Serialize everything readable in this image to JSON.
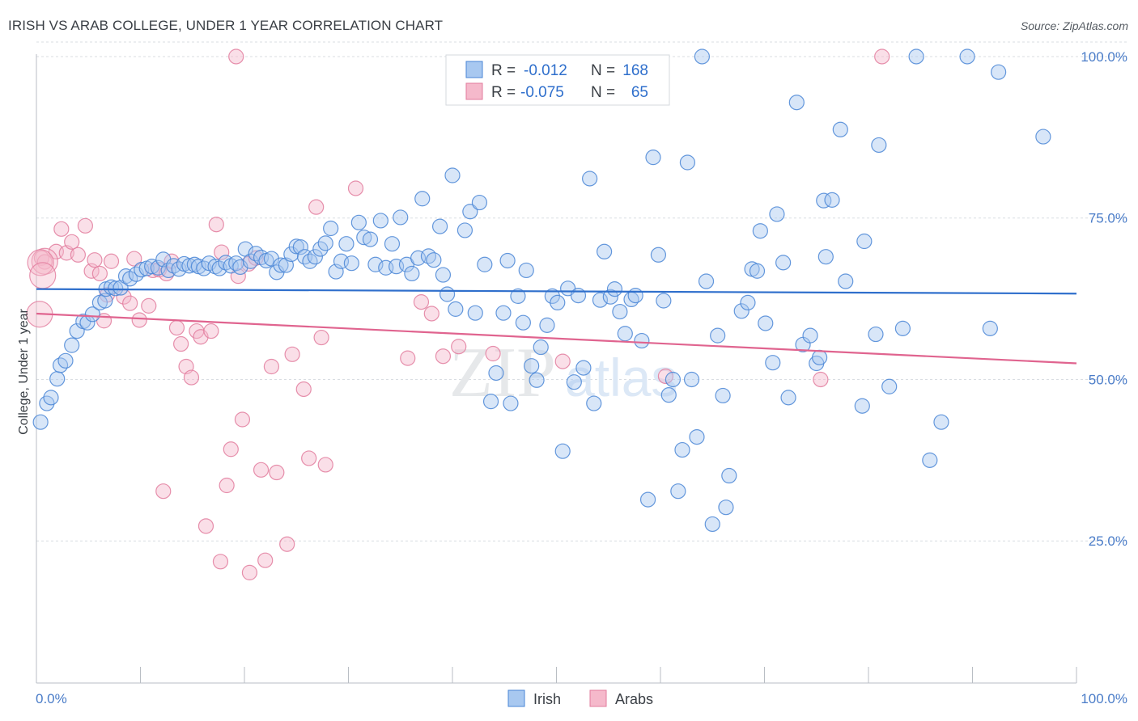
{
  "title": "IRISH VS ARAB COLLEGE, UNDER 1 YEAR CORRELATION CHART",
  "source": "Source: ZipAtlas.com",
  "watermark": {
    "part1": "ZIP",
    "part2": "atlas"
  },
  "colors": {
    "irish_fill": "#a8c8f0",
    "irish_stroke": "#4a86d6",
    "irish_line": "#2f6fcc",
    "arabs_fill": "#f5b9cb",
    "arabs_stroke": "#e27c9d",
    "arabs_line": "#e0648f",
    "tick_label": "#4a7cc8",
    "grid": "#d9dde2"
  },
  "stats_legend": {
    "r_label": "R =",
    "n_label": "N =",
    "rows": [
      {
        "series": "Irish",
        "r": "-0.012",
        "n": "168"
      },
      {
        "series": "Arabs",
        "r": "-0.075",
        "n": "65"
      }
    ]
  },
  "chart_data": {
    "type": "scatter",
    "title": "IRISH VS ARAB COLLEGE, UNDER 1 YEAR CORRELATION CHART",
    "xlabel": "",
    "ylabel": "College, Under 1 year",
    "xlim": [
      0,
      100
    ],
    "ylim": [
      3,
      101
    ],
    "x_tick_labels": [
      "0.0%",
      "100.0%"
    ],
    "y_ticks": [
      25,
      50,
      75,
      100
    ],
    "y_tick_labels": [
      "25.0%",
      "50.0%",
      "75.0%",
      "100.0%"
    ],
    "grid": true,
    "legend": "bottom-center",
    "series": [
      {
        "name": "Irish",
        "trend": {
          "x": [
            0,
            100
          ],
          "y": [
            64.0,
            63.3
          ]
        },
        "points": [
          [
            0.4,
            43.4
          ],
          [
            1.0,
            46.3
          ],
          [
            1.4,
            47.2
          ],
          [
            2.0,
            50.1
          ],
          [
            2.3,
            52.2
          ],
          [
            2.8,
            52.9
          ],
          [
            3.4,
            55.3
          ],
          [
            3.9,
            57.5
          ],
          [
            4.5,
            59.0
          ],
          [
            4.9,
            58.8
          ],
          [
            5.4,
            60.1
          ],
          [
            6.1,
            61.9
          ],
          [
            6.6,
            62.2
          ],
          [
            6.7,
            64.0
          ],
          [
            7.2,
            64.3
          ],
          [
            7.6,
            64.1
          ],
          [
            8.1,
            64.2
          ],
          [
            8.6,
            66.0
          ],
          [
            9.0,
            65.6
          ],
          [
            9.6,
            66.3
          ],
          [
            10.1,
            67.0
          ],
          [
            10.6,
            67.2
          ],
          [
            11.1,
            67.5
          ],
          [
            11.7,
            67.3
          ],
          [
            12.2,
            68.6
          ],
          [
            12.7,
            66.9
          ],
          [
            13.2,
            67.6
          ],
          [
            13.7,
            67.1
          ],
          [
            14.2,
            67.9
          ],
          [
            14.7,
            67.6
          ],
          [
            15.2,
            67.8
          ],
          [
            15.6,
            67.5
          ],
          [
            16.1,
            67.2
          ],
          [
            16.6,
            68.0
          ],
          [
            17.2,
            67.5
          ],
          [
            17.6,
            67.2
          ],
          [
            18.2,
            68.1
          ],
          [
            18.7,
            67.6
          ],
          [
            19.2,
            68.0
          ],
          [
            19.6,
            67.4
          ],
          [
            20.1,
            70.2
          ],
          [
            20.6,
            68.3
          ],
          [
            21.1,
            69.5
          ],
          [
            21.6,
            68.9
          ],
          [
            22.1,
            68.4
          ],
          [
            22.6,
            68.7
          ],
          [
            23.1,
            66.6
          ],
          [
            23.5,
            67.7
          ],
          [
            24.0,
            67.7
          ],
          [
            24.5,
            69.4
          ],
          [
            25.0,
            70.6
          ],
          [
            25.4,
            70.5
          ],
          [
            25.8,
            69.0
          ],
          [
            26.3,
            68.3
          ],
          [
            26.8,
            69.0
          ],
          [
            27.3,
            70.2
          ],
          [
            27.8,
            71.1
          ],
          [
            28.3,
            73.4
          ],
          [
            28.8,
            66.7
          ],
          [
            29.3,
            68.3
          ],
          [
            29.8,
            71.0
          ],
          [
            30.3,
            68.0
          ],
          [
            31.0,
            74.3
          ],
          [
            31.5,
            72.0
          ],
          [
            32.1,
            71.7
          ],
          [
            32.6,
            67.8
          ],
          [
            33.1,
            74.6
          ],
          [
            33.6,
            67.3
          ],
          [
            34.2,
            71.0
          ],
          [
            34.6,
            67.5
          ],
          [
            35.0,
            75.1
          ],
          [
            35.6,
            67.8
          ],
          [
            36.1,
            66.4
          ],
          [
            36.7,
            68.8
          ],
          [
            37.1,
            78.0
          ],
          [
            37.7,
            69.1
          ],
          [
            38.2,
            68.5
          ],
          [
            38.8,
            73.7
          ],
          [
            39.1,
            66.2
          ],
          [
            39.5,
            63.2
          ],
          [
            40.0,
            81.6
          ],
          [
            40.3,
            60.9
          ],
          [
            41.2,
            73.1
          ],
          [
            41.7,
            76.0
          ],
          [
            42.2,
            60.3
          ],
          [
            42.6,
            77.4
          ],
          [
            43.1,
            67.8
          ],
          [
            43.7,
            46.6
          ],
          [
            44.2,
            51.0
          ],
          [
            44.9,
            60.3
          ],
          [
            45.3,
            68.4
          ],
          [
            45.6,
            46.3
          ],
          [
            46.3,
            62.9
          ],
          [
            46.8,
            58.8
          ],
          [
            47.1,
            66.9
          ],
          [
            47.6,
            52.1
          ],
          [
            48.1,
            49.9
          ],
          [
            48.5,
            55.0
          ],
          [
            49.1,
            58.4
          ],
          [
            49.6,
            62.9
          ],
          [
            50.1,
            61.9
          ],
          [
            50.6,
            38.9
          ],
          [
            51.1,
            64.1
          ],
          [
            51.7,
            49.6
          ],
          [
            52.1,
            63.0
          ],
          [
            52.6,
            51.8
          ],
          [
            53.2,
            81.1
          ],
          [
            53.6,
            46.3
          ],
          [
            54.2,
            62.3
          ],
          [
            54.6,
            69.8
          ],
          [
            55.2,
            62.8
          ],
          [
            55.6,
            64.0
          ],
          [
            56.1,
            60.5
          ],
          [
            56.6,
            57.1
          ],
          [
            57.2,
            62.4
          ],
          [
            57.6,
            63.0
          ],
          [
            58.2,
            56.0
          ],
          [
            58.8,
            31.4
          ],
          [
            59.3,
            84.4
          ],
          [
            59.8,
            69.3
          ],
          [
            60.3,
            62.2
          ],
          [
            60.8,
            47.6
          ],
          [
            61.2,
            50.0
          ],
          [
            61.7,
            32.7
          ],
          [
            62.1,
            39.1
          ],
          [
            62.6,
            83.6
          ],
          [
            63.0,
            50.0
          ],
          [
            63.5,
            41.1
          ],
          [
            64.0,
            100.0
          ],
          [
            64.4,
            65.2
          ],
          [
            65.0,
            27.6
          ],
          [
            65.5,
            56.8
          ],
          [
            66.0,
            47.5
          ],
          [
            66.3,
            30.2
          ],
          [
            66.6,
            35.1
          ],
          [
            67.8,
            60.6
          ],
          [
            68.4,
            61.9
          ],
          [
            68.8,
            67.1
          ],
          [
            69.3,
            66.8
          ],
          [
            69.6,
            73.0
          ],
          [
            70.1,
            58.7
          ],
          [
            70.8,
            52.6
          ],
          [
            71.2,
            75.6
          ],
          [
            71.8,
            68.1
          ],
          [
            72.3,
            47.2
          ],
          [
            73.1,
            92.9
          ],
          [
            73.7,
            55.4
          ],
          [
            74.4,
            56.8
          ],
          [
            75.0,
            52.5
          ],
          [
            75.3,
            53.4
          ],
          [
            75.7,
            77.7
          ],
          [
            75.9,
            69.0
          ],
          [
            76.5,
            77.8
          ],
          [
            77.3,
            88.7
          ],
          [
            77.8,
            65.2
          ],
          [
            79.4,
            45.9
          ],
          [
            79.6,
            71.4
          ],
          [
            80.7,
            57.0
          ],
          [
            81.0,
            86.3
          ],
          [
            82.0,
            48.9
          ],
          [
            83.3,
            57.9
          ],
          [
            84.6,
            100.0
          ],
          [
            85.9,
            37.5
          ],
          [
            87.0,
            43.4
          ],
          [
            89.5,
            100.0
          ],
          [
            91.7,
            57.9
          ],
          [
            92.5,
            97.6
          ],
          [
            96.8,
            87.6
          ]
        ]
      },
      {
        "name": "Arabs",
        "trend": {
          "x": [
            0,
            100
          ],
          "y": [
            60.2,
            52.5
          ]
        },
        "points": [
          [
            0.5,
            68.8
          ],
          [
            0.8,
            68.2
          ],
          [
            1.9,
            69.8
          ],
          [
            2.4,
            73.3
          ],
          [
            2.9,
            69.6
          ],
          [
            3.4,
            71.3
          ],
          [
            4.0,
            69.3
          ],
          [
            4.7,
            73.8
          ],
          [
            5.3,
            66.8
          ],
          [
            5.6,
            68.5
          ],
          [
            6.1,
            66.4
          ],
          [
            6.5,
            59.1
          ],
          [
            6.8,
            63.1
          ],
          [
            7.2,
            68.3
          ],
          [
            8.4,
            62.8
          ],
          [
            9.0,
            61.8
          ],
          [
            9.4,
            68.7
          ],
          [
            9.9,
            59.2
          ],
          [
            10.8,
            61.4
          ],
          [
            11.2,
            66.9
          ],
          [
            11.8,
            67.0
          ],
          [
            12.2,
            32.7
          ],
          [
            12.5,
            66.4
          ],
          [
            13.0,
            68.3
          ],
          [
            13.5,
            58.0
          ],
          [
            13.9,
            55.5
          ],
          [
            14.4,
            52.0
          ],
          [
            14.9,
            50.3
          ],
          [
            15.4,
            57.5
          ],
          [
            15.8,
            56.6
          ],
          [
            16.3,
            27.3
          ],
          [
            16.8,
            57.5
          ],
          [
            17.3,
            74.0
          ],
          [
            17.8,
            69.7
          ],
          [
            17.7,
            21.8
          ],
          [
            18.3,
            33.6
          ],
          [
            18.7,
            39.2
          ],
          [
            19.2,
            100.0
          ],
          [
            19.4,
            66.0
          ],
          [
            19.8,
            43.8
          ],
          [
            20.4,
            67.9
          ],
          [
            20.5,
            20.1
          ],
          [
            21.1,
            68.8
          ],
          [
            21.6,
            36.0
          ],
          [
            22.0,
            22.0
          ],
          [
            22.6,
            52.0
          ],
          [
            23.1,
            35.6
          ],
          [
            24.1,
            24.5
          ],
          [
            24.6,
            53.9
          ],
          [
            25.7,
            48.5
          ],
          [
            26.2,
            37.8
          ],
          [
            26.9,
            76.7
          ],
          [
            27.4,
            56.5
          ],
          [
            27.8,
            36.8
          ],
          [
            30.7,
            79.6
          ],
          [
            35.7,
            53.3
          ],
          [
            37.0,
            62.0
          ],
          [
            38.0,
            60.2
          ],
          [
            39.1,
            53.6
          ],
          [
            40.6,
            55.1
          ],
          [
            43.9,
            54.0
          ],
          [
            50.6,
            52.8
          ],
          [
            60.5,
            50.5
          ],
          [
            75.4,
            50.0
          ],
          [
            81.3,
            100.0
          ]
        ],
        "large_points": [
          [
            0.8,
            68.3
          ],
          [
            0.4,
            68.1
          ],
          [
            0.3,
            60.1
          ],
          [
            0.6,
            66.1
          ]
        ]
      }
    ]
  }
}
